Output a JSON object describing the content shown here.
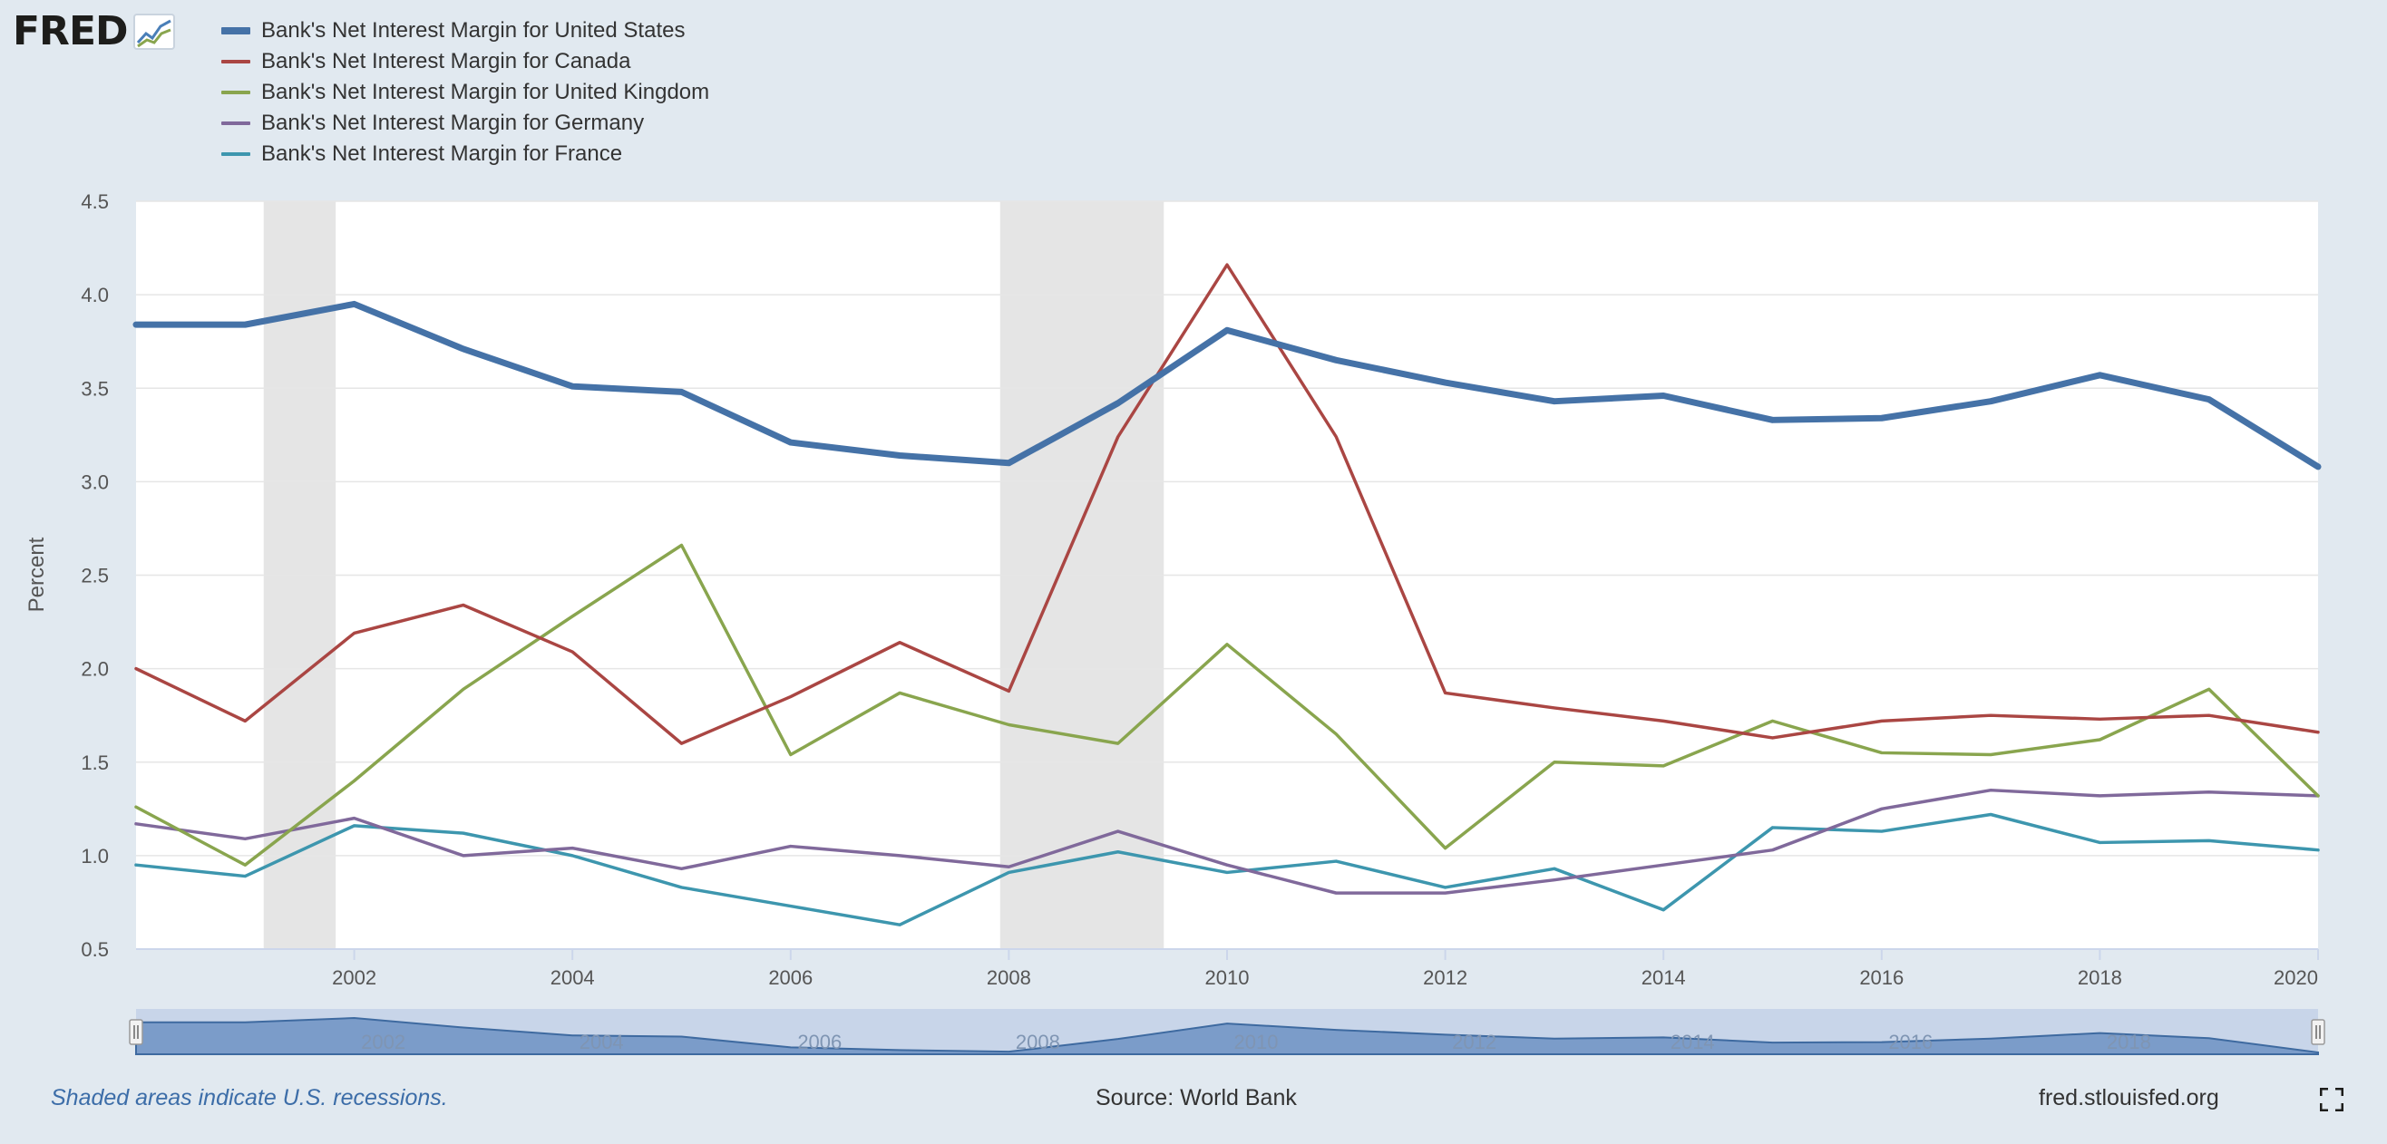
{
  "brand": {
    "logo_text": "FRED",
    "logo_icon": "fred-chart-icon"
  },
  "footer": {
    "note": "Shaded areas indicate U.S. recessions.",
    "source": "Source: World Bank",
    "site": "fred.stlouisfed.org",
    "fullscreen_icon": "fullscreen-icon"
  },
  "colors": {
    "us": "#4572a7",
    "canada": "#aa4643",
    "uk": "#89a54e",
    "germany": "#80699b",
    "france": "#3d96ae",
    "recession": "#e5e5e5",
    "plot_bg": "#ffffff",
    "page_bg": "#e1e9f0"
  },
  "chart_data": {
    "type": "line",
    "xlabel": "",
    "ylabel": "Percent",
    "xlim": [
      2000,
      2020
    ],
    "ylim": [
      0.5,
      4.5
    ],
    "y_ticks": [
      0.5,
      1.0,
      1.5,
      2.0,
      2.5,
      3.0,
      3.5,
      4.0,
      4.5
    ],
    "x_ticks": [
      2002,
      2004,
      2006,
      2008,
      2010,
      2012,
      2014,
      2016,
      2018,
      2020
    ],
    "grid": "horizontal",
    "legend_position": "top-left",
    "recessions": [
      [
        2001.17,
        2001.83
      ],
      [
        2007.92,
        2009.42
      ]
    ],
    "x": [
      2000,
      2001,
      2002,
      2003,
      2004,
      2005,
      2006,
      2007,
      2008,
      2009,
      2010,
      2011,
      2012,
      2013,
      2014,
      2015,
      2016,
      2017,
      2018,
      2019,
      2020
    ],
    "series": [
      {
        "name": "Bank's Net Interest Margin for United States",
        "key": "us",
        "values": [
          3.84,
          3.84,
          3.95,
          3.71,
          3.51,
          3.48,
          3.21,
          3.14,
          3.1,
          3.42,
          3.81,
          3.65,
          3.53,
          3.43,
          3.46,
          3.33,
          3.34,
          3.43,
          3.57,
          3.44,
          3.08
        ]
      },
      {
        "name": "Bank's Net Interest Margin for Canada",
        "key": "canada",
        "values": [
          2.0,
          1.72,
          2.19,
          2.34,
          2.09,
          1.6,
          1.85,
          2.14,
          1.88,
          3.24,
          4.16,
          3.24,
          1.87,
          1.79,
          1.72,
          1.63,
          1.72,
          1.75,
          1.73,
          1.75,
          1.66
        ]
      },
      {
        "name": "Bank's Net Interest Margin for United Kingdom",
        "key": "uk",
        "values": [
          1.26,
          0.95,
          1.4,
          1.89,
          2.28,
          2.66,
          1.54,
          1.87,
          1.7,
          1.6,
          2.13,
          1.65,
          1.04,
          1.5,
          1.48,
          1.72,
          1.55,
          1.54,
          1.62,
          1.89,
          1.32
        ]
      },
      {
        "name": "Bank's Net Interest Margin for Germany",
        "key": "germany",
        "values": [
          1.17,
          1.09,
          1.2,
          1.0,
          1.04,
          0.93,
          1.05,
          1.0,
          0.94,
          1.13,
          0.95,
          0.8,
          0.8,
          0.87,
          0.95,
          1.03,
          1.25,
          1.35,
          1.32,
          1.34,
          1.32
        ]
      },
      {
        "name": "Bank's Net Interest Margin for France",
        "key": "france",
        "values": [
          0.95,
          0.89,
          1.16,
          1.12,
          1.0,
          0.83,
          0.73,
          0.63,
          0.91,
          1.02,
          0.91,
          0.97,
          0.83,
          0.93,
          0.71,
          1.15,
          1.13,
          1.22,
          1.07,
          1.08,
          1.03
        ]
      }
    ],
    "navigator": {
      "x_ticks": [
        2002,
        2004,
        2006,
        2008,
        2010,
        2012,
        2014,
        2016,
        2018
      ]
    }
  }
}
